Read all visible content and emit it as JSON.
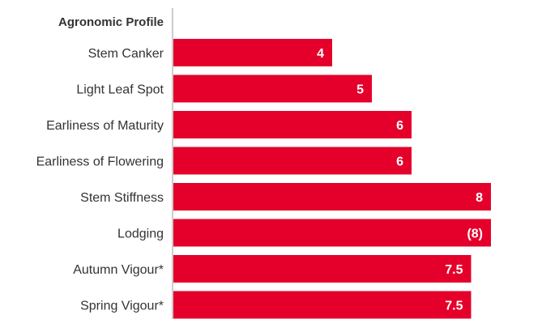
{
  "chart_data": {
    "type": "bar",
    "orientation": "horizontal",
    "title": "Agronomic Profile",
    "categories": [
      "Stem Canker",
      "Light Leaf Spot",
      "Earliness of Maturity",
      "Earliness of Flowering",
      "Stem Stiffness",
      "Lodging",
      "Autumn Vigour*",
      "Spring Vigour*"
    ],
    "values": [
      4,
      5,
      6,
      6,
      8,
      8,
      7.5,
      7.5
    ],
    "value_labels": [
      "4",
      "5",
      "6",
      "6",
      "8",
      "(8)",
      "7.5",
      "7.5"
    ],
    "bar_color": "#e4002b",
    "axis_color": "#999999",
    "grid": false,
    "legend": "none"
  }
}
